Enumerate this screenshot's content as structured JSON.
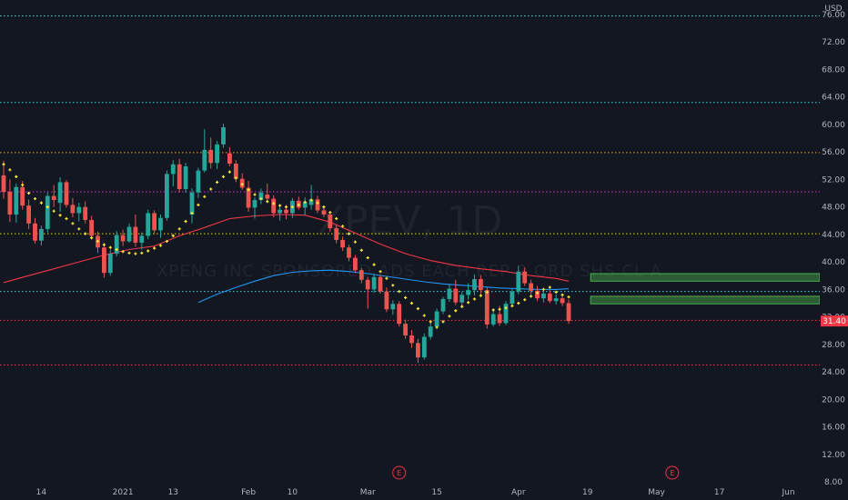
{
  "chart_data": {
    "type": "candlestick",
    "symbol": "XPEV, 1D",
    "company": "XPENG INC SPONSORED ADS EACH REP 2 ORD SHS CL A",
    "currency": "USD",
    "last_price": 31.4,
    "last_price_label": "31.40",
    "y_axis": {
      "min": 8,
      "max": 78,
      "ticks": [
        8,
        12,
        16,
        20,
        24,
        28,
        32,
        36,
        40,
        44,
        48,
        52,
        56,
        60,
        64,
        68,
        72,
        76
      ],
      "tick_labels": [
        "8.00",
        "12.00",
        "16.00",
        "20.00",
        "24.00",
        "28.00",
        "32.00",
        "36.00",
        "40.00",
        "44.00",
        "48.00",
        "52.00",
        "56.00",
        "60.00",
        "64.00",
        "68.00",
        "72.00",
        "76.00"
      ]
    },
    "x_axis": {
      "bar_min": 0,
      "bar_max": 129,
      "ticks": [
        {
          "bar": 6,
          "label": "14"
        },
        {
          "bar": 19,
          "label": "2021"
        },
        {
          "bar": 27,
          "label": "13"
        },
        {
          "bar": 39,
          "label": "Feb"
        },
        {
          "bar": 46,
          "label": "10"
        },
        {
          "bar": 58,
          "label": "Mar"
        },
        {
          "bar": 69,
          "label": "15"
        },
        {
          "bar": 82,
          "label": "Apr"
        },
        {
          "bar": 93,
          "label": "19"
        },
        {
          "bar": 104,
          "label": "May"
        },
        {
          "bar": 114,
          "label": "17"
        },
        {
          "bar": 125,
          "label": "Jun"
        }
      ]
    },
    "horizontal_levels": [
      {
        "price": 75.8,
        "color": "#4dd0e1",
        "style": "dotted"
      },
      {
        "price": 63.2,
        "color": "#4dd0e1",
        "style": "dotted"
      },
      {
        "price": 55.9,
        "color": "#f5a623",
        "style": "dotted"
      },
      {
        "price": 50.2,
        "color": "#c73fc7",
        "style": "dotted"
      },
      {
        "price": 44.1,
        "color": "#f5d400",
        "style": "dotted"
      },
      {
        "price": 35.7,
        "color": "#4dd0e1",
        "style": "dotted"
      },
      {
        "price": 31.5,
        "color": "#f23645",
        "style": "dotted"
      },
      {
        "price": 25.0,
        "color": "#f23645",
        "style": "dotted"
      }
    ],
    "zones": [
      {
        "bar_start": 93.5,
        "bar_end": 130,
        "price_low": 37.2,
        "price_high": 38.3,
        "color": "#4caf50"
      },
      {
        "bar_start": 93.5,
        "bar_end": 130,
        "price_low": 33.9,
        "price_high": 35.0,
        "color": "#4caf50"
      }
    ],
    "earnings_markers": [
      {
        "bar": 63,
        "label": "E"
      },
      {
        "bar": 106.5,
        "label": "E"
      }
    ],
    "candles": [
      [
        52.6,
        54.7,
        49.2,
        50.2
      ],
      [
        50.2,
        52.0,
        45.8,
        46.9
      ],
      [
        46.9,
        51.4,
        45.7,
        50.9
      ],
      [
        50.9,
        51.8,
        47.6,
        48.2
      ],
      [
        48.2,
        49.1,
        44.8,
        45.6
      ],
      [
        45.6,
        46.4,
        42.7,
        43.1
      ],
      [
        43.1,
        45.3,
        42.4,
        44.8
      ],
      [
        44.8,
        50.1,
        44.3,
        49.6
      ],
      [
        49.6,
        51.2,
        48.0,
        49.0
      ],
      [
        48.6,
        52.3,
        47.3,
        51.6
      ],
      [
        51.6,
        51.9,
        47.9,
        48.3
      ],
      [
        48.3,
        49.3,
        46.5,
        47.1
      ],
      [
        47.1,
        48.6,
        45.9,
        48.0
      ],
      [
        48.0,
        48.8,
        45.6,
        46.1
      ],
      [
        46.1,
        46.7,
        43.3,
        43.8
      ],
      [
        43.8,
        44.4,
        41.3,
        42.1
      ],
      [
        42.1,
        42.5,
        37.7,
        38.4
      ],
      [
        38.4,
        41.8,
        38.0,
        41.2
      ],
      [
        41.2,
        44.5,
        40.8,
        43.9
      ],
      [
        43.9,
        44.7,
        42.3,
        43.0
      ],
      [
        43.0,
        45.6,
        42.8,
        45.1
      ],
      [
        45.1,
        46.9,
        42.2,
        42.8
      ],
      [
        42.8,
        44.3,
        41.8,
        43.8
      ],
      [
        43.8,
        47.6,
        43.3,
        47.1
      ],
      [
        47.1,
        47.5,
        44.1,
        44.6
      ],
      [
        44.6,
        46.9,
        43.5,
        46.4
      ],
      [
        46.4,
        53.3,
        46.0,
        52.8
      ],
      [
        52.8,
        54.8,
        51.0,
        54.2
      ],
      [
        54.2,
        55.0,
        50.1,
        50.6
      ],
      [
        50.6,
        54.4,
        50.1,
        53.9
      ],
      [
        46.9,
        50.7,
        45.6,
        50.1
      ],
      [
        50.1,
        53.7,
        49.3,
        53.3
      ],
      [
        53.3,
        59.3,
        53.0,
        56.3
      ],
      [
        56.3,
        58.1,
        53.6,
        54.4
      ],
      [
        54.4,
        57.6,
        53.5,
        57.1
      ],
      [
        57.1,
        60.1,
        56.6,
        59.6
      ],
      [
        55.8,
        56.7,
        53.9,
        54.3
      ],
      [
        54.3,
        54.8,
        51.6,
        52.1
      ],
      [
        52.1,
        52.9,
        50.5,
        50.8
      ],
      [
        50.8,
        51.8,
        47.3,
        47.9
      ],
      [
        47.9,
        49.4,
        46.3,
        49.0
      ],
      [
        49.0,
        50.7,
        48.4,
        50.1
      ],
      [
        49.8,
        51.4,
        48.7,
        49.2
      ],
      [
        49.2,
        49.7,
        46.5,
        47.1
      ],
      [
        47.1,
        48.2,
        46.0,
        47.6
      ],
      [
        47.6,
        48.3,
        46.2,
        47.1
      ],
      [
        47.1,
        49.3,
        46.4,
        48.9
      ],
      [
        48.9,
        49.5,
        47.6,
        47.9
      ],
      [
        47.9,
        49.4,
        46.8,
        48.7
      ],
      [
        48.3,
        51.2,
        47.6,
        49.1
      ],
      [
        49.1,
        49.6,
        47.1,
        47.5
      ],
      [
        47.5,
        48.0,
        46.5,
        46.9
      ],
      [
        46.9,
        47.4,
        44.4,
        44.9
      ],
      [
        44.9,
        45.5,
        42.7,
        43.2
      ],
      [
        43.2,
        43.7,
        41.6,
        42.1
      ],
      [
        42.1,
        42.5,
        40.1,
        40.6
      ],
      [
        40.6,
        41.0,
        38.4,
        38.8
      ],
      [
        38.8,
        39.1,
        36.9,
        37.4
      ],
      [
        37.4,
        37.8,
        33.2,
        36.0
      ],
      [
        36.0,
        38.3,
        35.5,
        37.8
      ],
      [
        37.8,
        38.1,
        35.4,
        35.7
      ],
      [
        35.7,
        36.3,
        32.7,
        33.1
      ],
      [
        33.1,
        34.4,
        32.3,
        33.9
      ],
      [
        33.9,
        34.3,
        30.6,
        31.0
      ],
      [
        31.0,
        31.6,
        28.8,
        29.3
      ],
      [
        29.3,
        30.1,
        27.5,
        28.2
      ],
      [
        28.2,
        28.8,
        25.3,
        26.1
      ],
      [
        26.1,
        29.6,
        25.8,
        29.1
      ],
      [
        29.1,
        31.2,
        28.7,
        30.6
      ],
      [
        30.6,
        33.2,
        30.2,
        32.8
      ],
      [
        32.8,
        34.9,
        32.4,
        34.6
      ],
      [
        34.6,
        36.8,
        34.2,
        36.1
      ],
      [
        36.1,
        37.4,
        33.7,
        34.1
      ],
      [
        34.1,
        35.6,
        33.4,
        35.2
      ],
      [
        35.2,
        36.9,
        34.5,
        35.9
      ],
      [
        35.9,
        38.2,
        35.1,
        37.5
      ],
      [
        37.5,
        38.1,
        35.4,
        35.9
      ],
      [
        35.9,
        36.3,
        30.3,
        30.9
      ],
      [
        30.9,
        33.2,
        30.6,
        32.4
      ],
      [
        32.4,
        33.6,
        30.7,
        31.1
      ],
      [
        31.1,
        34.3,
        30.8,
        33.9
      ],
      [
        33.9,
        36.1,
        33.5,
        35.7
      ],
      [
        35.7,
        39.4,
        35.3,
        38.6
      ],
      [
        38.6,
        39.2,
        36.5,
        36.9
      ],
      [
        36.9,
        37.4,
        35.3,
        35.8
      ],
      [
        35.8,
        36.5,
        34.3,
        34.7
      ],
      [
        34.7,
        35.8,
        34.1,
        35.4
      ],
      [
        35.4,
        35.9,
        34.0,
        34.3
      ],
      [
        34.3,
        35.3,
        33.8,
        34.7
      ],
      [
        34.7,
        35.1,
        33.6,
        34.0
      ],
      [
        34.0,
        34.5,
        31.0,
        31.4
      ]
    ],
    "parabolic_sar": [
      [
        0,
        54.2
      ],
      [
        1,
        53.4
      ],
      [
        2,
        52.4
      ],
      [
        3,
        51.2
      ],
      [
        4,
        50.0
      ],
      [
        5,
        49.2
      ],
      [
        6,
        48.6
      ],
      [
        7,
        48.0
      ],
      [
        8,
        47.4
      ],
      [
        9,
        46.8
      ],
      [
        10,
        46.3
      ],
      [
        11,
        45.6
      ],
      [
        12,
        44.8
      ],
      [
        13,
        44.1
      ],
      [
        14,
        43.5
      ],
      [
        15,
        43.0
      ],
      [
        16,
        42.5
      ],
      [
        17,
        42.1
      ],
      [
        18,
        41.8
      ],
      [
        19,
        41.5
      ],
      [
        20,
        41.3
      ],
      [
        21,
        41.2
      ],
      [
        22,
        41.3
      ],
      [
        23,
        41.6
      ],
      [
        24,
        42.0
      ],
      [
        25,
        42.4
      ],
      [
        26,
        43.0
      ],
      [
        27,
        43.8
      ],
      [
        28,
        44.8
      ],
      [
        29,
        45.9
      ],
      [
        30,
        47.1
      ],
      [
        31,
        48.3
      ],
      [
        32,
        49.5
      ],
      [
        33,
        50.6
      ],
      [
        34,
        51.6
      ],
      [
        35,
        52.4
      ],
      [
        36,
        53.1
      ],
      [
        37,
        52.2
      ],
      [
        38,
        51.3
      ],
      [
        39,
        50.5
      ],
      [
        40,
        49.8
      ],
      [
        41,
        49.2
      ],
      [
        42,
        48.8
      ],
      [
        43,
        48.5
      ],
      [
        44,
        48.2
      ],
      [
        45,
        48.0
      ],
      [
        46,
        48.0
      ],
      [
        47,
        48.3
      ],
      [
        48,
        48.7
      ],
      [
        49,
        49.0
      ],
      [
        50,
        48.6
      ],
      [
        51,
        48.0
      ],
      [
        52,
        47.2
      ],
      [
        53,
        46.3
      ],
      [
        54,
        45.2
      ],
      [
        55,
        44.1
      ],
      [
        56,
        42.9
      ],
      [
        57,
        41.7
      ],
      [
        58,
        40.6
      ],
      [
        59,
        39.6
      ],
      [
        60,
        38.6
      ],
      [
        61,
        37.6
      ],
      [
        62,
        36.6
      ],
      [
        63,
        35.7
      ],
      [
        64,
        34.8
      ],
      [
        65,
        34.0
      ],
      [
        66,
        33.2
      ],
      [
        67,
        32.2
      ],
      [
        68,
        31.3
      ],
      [
        69,
        30.5
      ],
      [
        70,
        31.3
      ],
      [
        71,
        32.1
      ],
      [
        72,
        32.9
      ],
      [
        73,
        33.5
      ],
      [
        74,
        34.1
      ],
      [
        75,
        34.6
      ],
      [
        76,
        35.1
      ],
      [
        77,
        35.6
      ],
      [
        78,
        33.0
      ],
      [
        79,
        33.1
      ],
      [
        80,
        33.3
      ],
      [
        81,
        33.6
      ],
      [
        82,
        34.0
      ],
      [
        83,
        34.5
      ],
      [
        84,
        35.0
      ],
      [
        85,
        35.5
      ],
      [
        86,
        36.0
      ],
      [
        87,
        36.3
      ],
      [
        88,
        35.6
      ],
      [
        89,
        35.2
      ],
      [
        90,
        34.9
      ]
    ],
    "moving_averages": [
      {
        "color": "#f23645",
        "points": [
          [
            0,
            37.0
          ],
          [
            4,
            38.0
          ],
          [
            8,
            39.0
          ],
          [
            12,
            40.0
          ],
          [
            16,
            41.0
          ],
          [
            20,
            41.8
          ],
          [
            24,
            42.3
          ],
          [
            28,
            43.8
          ],
          [
            32,
            45.0
          ],
          [
            36,
            46.3
          ],
          [
            40,
            46.7
          ],
          [
            44,
            46.9
          ],
          [
            48,
            46.8
          ],
          [
            52,
            45.8
          ],
          [
            56,
            44.2
          ],
          [
            60,
            42.6
          ],
          [
            64,
            41.2
          ],
          [
            68,
            40.2
          ],
          [
            72,
            39.5
          ],
          [
            76,
            39.0
          ],
          [
            80,
            38.6
          ],
          [
            84,
            38.0
          ],
          [
            88,
            37.6
          ],
          [
            90,
            37.2
          ]
        ]
      },
      {
        "color": "#2196f3",
        "points": [
          [
            31,
            34.1
          ],
          [
            34,
            35.3
          ],
          [
            37,
            36.3
          ],
          [
            40,
            37.2
          ],
          [
            43,
            38.0
          ],
          [
            46,
            38.5
          ],
          [
            49,
            38.7
          ],
          [
            52,
            38.8
          ],
          [
            55,
            38.6
          ],
          [
            58,
            38.3
          ],
          [
            61,
            37.9
          ],
          [
            64,
            37.5
          ],
          [
            67,
            37.1
          ],
          [
            70,
            36.8
          ],
          [
            73,
            36.6
          ],
          [
            76,
            36.4
          ],
          [
            79,
            36.2
          ],
          [
            82,
            36.1
          ],
          [
            85,
            36.0
          ],
          [
            88,
            36.0
          ],
          [
            90,
            36.1
          ]
        ]
      }
    ],
    "colors": {
      "background": "#131722",
      "up": "#26a69a",
      "down": "#ef5350",
      "sar": "#ffeb3b",
      "axis_text": "#b2b5be",
      "price_label": "#f23645"
    }
  }
}
